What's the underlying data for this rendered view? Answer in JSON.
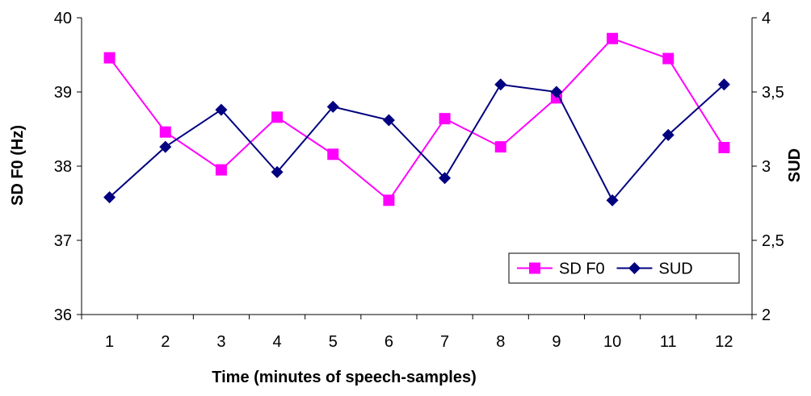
{
  "chart_data": {
    "type": "line",
    "title": "",
    "xlabel": "Time (minutes of speech-samples)",
    "ylabel_left": "SD F0 (Hz)",
    "ylabel_right": "SUD",
    "categories": [
      "1",
      "2",
      "3",
      "4",
      "5",
      "6",
      "7",
      "8",
      "9",
      "10",
      "11",
      "12"
    ],
    "ylim_left": [
      36,
      40
    ],
    "yticks_left": [
      "36",
      "37",
      "38",
      "39",
      "40"
    ],
    "ylim_right": [
      2,
      4
    ],
    "yticks_right": [
      "2",
      "2,5",
      "3",
      "3,5",
      "4"
    ],
    "grid": false,
    "legend_position": "bottom-right",
    "series": [
      {
        "name": "SD F0",
        "axis": "left",
        "marker": "square",
        "color": "#FF00FF",
        "values": [
          39.46,
          38.46,
          37.95,
          38.66,
          38.16,
          37.54,
          38.64,
          38.26,
          38.92,
          39.72,
          39.45,
          38.25
        ]
      },
      {
        "name": "SUD",
        "axis": "right",
        "marker": "diamond",
        "color": "#000080",
        "values": [
          2.79,
          3.13,
          3.38,
          2.96,
          3.4,
          3.31,
          2.92,
          3.55,
          3.5,
          2.77,
          3.21,
          3.55
        ]
      }
    ]
  }
}
